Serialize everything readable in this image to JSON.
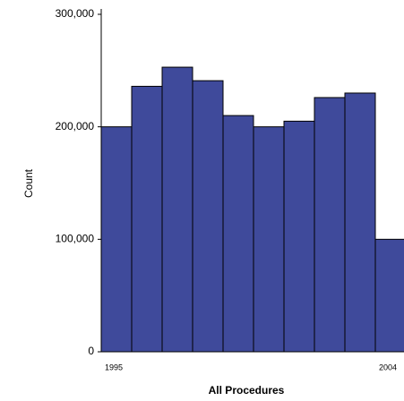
{
  "chart_data": {
    "type": "bar",
    "x_label": "All Procedures",
    "y_label": "Count",
    "categories": [
      "1995",
      null,
      null,
      null,
      null,
      null,
      null,
      null,
      null,
      "2004"
    ],
    "values": [
      200000,
      236000,
      253000,
      241000,
      210000,
      200000,
      205000,
      226000,
      230000,
      100000
    ],
    "color": "#3f4a9b",
    "ylim": [
      0,
      300000
    ],
    "yticks": [
      0,
      {
        "value": 100000,
        "label": "100,000"
      },
      {
        "value": 200000,
        "label": "200,000"
      },
      {
        "value": 300000,
        "label": "300,000"
      }
    ]
  }
}
